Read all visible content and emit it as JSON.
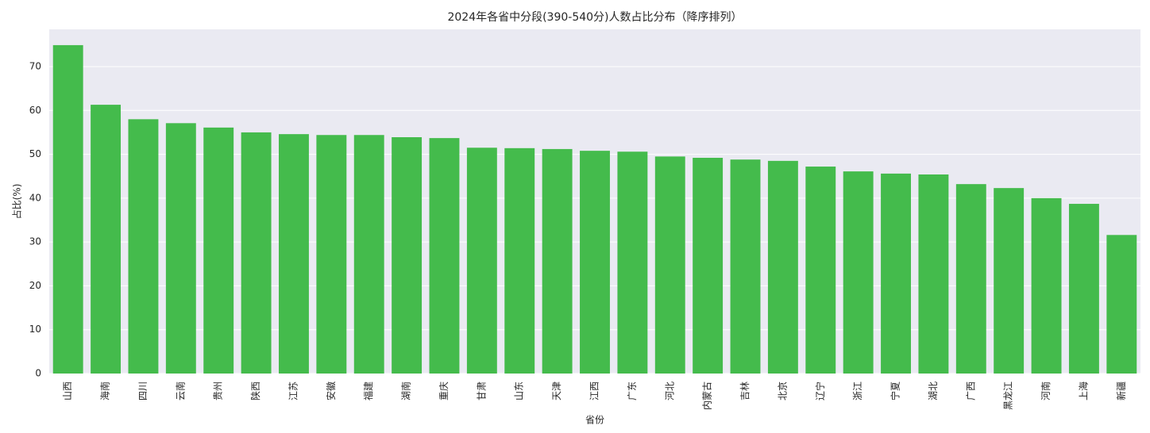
{
  "chart_data": {
    "type": "bar",
    "title": "2024年各省中分段(390-540分)人数占比分布（降序排列）",
    "x_label": "省份",
    "y_label": "占比(%)",
    "categories": [
      "山西",
      "海南",
      "四川",
      "云南",
      "贵州",
      "陕西",
      "江苏",
      "安徽",
      "福建",
      "湖南",
      "重庆",
      "甘肃",
      "山东",
      "天津",
      "江西",
      "广东",
      "河北",
      "内蒙古",
      "吉林",
      "北京",
      "辽宁",
      "浙江",
      "宁夏",
      "湖北",
      "广西",
      "黑龙江",
      "河南",
      "上海",
      "新疆"
    ],
    "values": [
      74.9,
      61.3,
      58.0,
      57.1,
      56.1,
      55.0,
      54.6,
      54.4,
      54.4,
      53.9,
      53.7,
      51.5,
      51.4,
      51.2,
      50.8,
      50.6,
      49.5,
      49.2,
      48.8,
      48.5,
      47.2,
      46.1,
      45.6,
      45.4,
      43.2,
      42.3,
      40.0,
      38.7,
      31.6
    ],
    "color": "#44bb4c",
    "ylim": [
      0,
      78.5
    ],
    "yticks": [
      0,
      10,
      20,
      30,
      40,
      50,
      60,
      70
    ],
    "grid": true
  }
}
